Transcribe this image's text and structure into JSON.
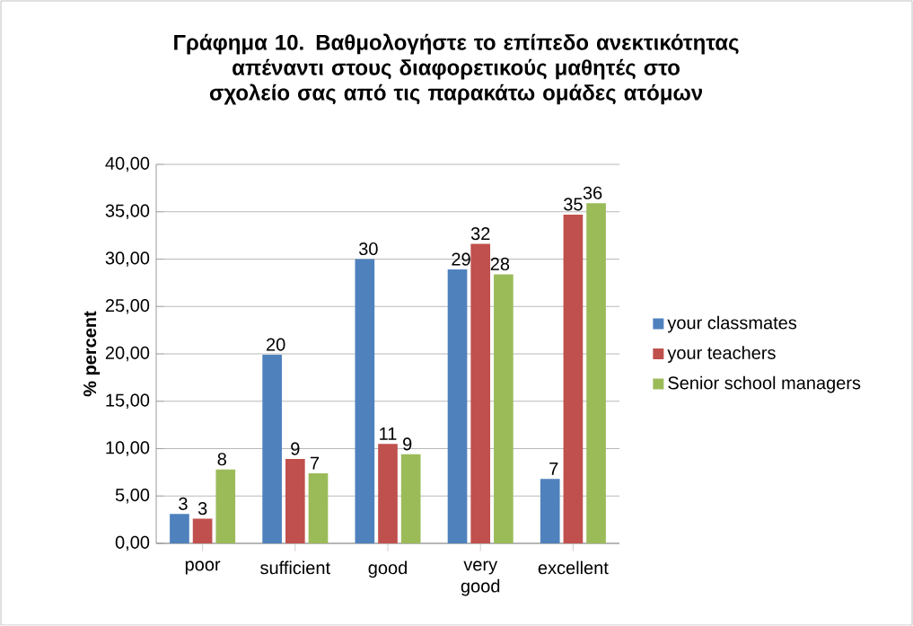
{
  "chart_data": {
    "type": "bar",
    "title": "**Γράφημα 10. Βαθμολογήστε το επίπεδο ανεκτικότητας απέναντι στους διαφορετικούς μαθητές στο σχολείο σας από τις παρακάτω ομάδες ατόμων**",
    "ylabel": "**% percent**",
    "categories": [
      "poor",
      "sufficient",
      "good",
      "very good",
      "excellent"
    ],
    "series": [
      {
        "name": "your classmates",
        "color": "#4f81bd",
        "values": [
          3.1,
          19.9,
          30.0,
          28.9,
          6.8
        ],
        "value_labels": [
          "3",
          "20",
          "30",
          "29",
          "7"
        ]
      },
      {
        "name": "your teachers",
        "color": "#c0504d",
        "values": [
          2.6,
          8.9,
          10.5,
          31.6,
          34.7
        ],
        "value_labels": [
          "3",
          "9",
          "11",
          "32",
          "35"
        ]
      },
      {
        "name": "Senior school managers",
        "color": "#9bbb59",
        "values": [
          7.8,
          7.4,
          9.4,
          28.4,
          35.9
        ],
        "value_labels": [
          "8",
          "7",
          "9",
          "28",
          "36"
        ]
      }
    ],
    "ylim": [
      0,
      40
    ],
    "yticks": [
      {
        "value": 0,
        "label": "0,00"
      },
      {
        "value": 5,
        "label": "5,00"
      },
      {
        "value": 10,
        "label": "10,00"
      },
      {
        "value": 15,
        "label": "15,00"
      },
      {
        "value": 20,
        "label": "20,00"
      },
      {
        "value": 25,
        "label": "25,00"
      },
      {
        "value": 30,
        "label": "30,00"
      },
      {
        "value": 35,
        "label": "35,00"
      },
      {
        "value": 40,
        "label": "40,00"
      }
    ],
    "grid": "y",
    "legend": "right"
  }
}
